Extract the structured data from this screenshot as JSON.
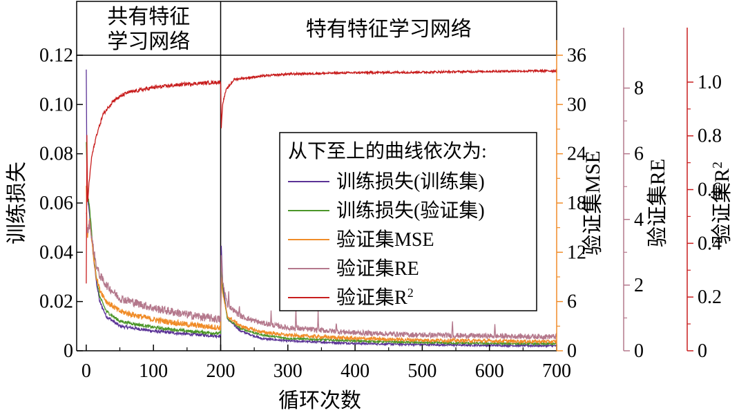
{
  "chart_data": {
    "type": "line",
    "xlabel": "循环次数",
    "x_range": [
      -5,
      700
    ],
    "x_ticks": [
      0,
      100,
      200,
      300,
      400,
      500,
      600,
      700
    ],
    "stage_divider_x": 200,
    "stages": [
      {
        "label_lines": [
          "共有特征",
          "学习网络"
        ],
        "x_range": [
          0,
          200
        ]
      },
      {
        "label_lines": [
          "特有特征学习网络"
        ],
        "x_range": [
          200,
          700
        ]
      }
    ],
    "axes": [
      {
        "id": "loss",
        "side": "left",
        "label": "训练损失",
        "range": [
          0,
          0.12
        ],
        "ticks": [
          "0",
          "0.02",
          "0.04",
          "0.06",
          "0.08",
          "0.10",
          "0.12"
        ],
        "color": "#000000"
      },
      {
        "id": "mse",
        "side": "right",
        "label": "验证集MSE",
        "range": [
          0,
          36
        ],
        "ticks": [
          "0",
          "6",
          "12",
          "18",
          "24",
          "30",
          "36"
        ],
        "color": "#f08c28"
      },
      {
        "id": "re",
        "side": "right",
        "label": "验证集RE",
        "range": [
          0,
          9
        ],
        "ticks": [
          "0",
          "2",
          "4",
          "6",
          "8"
        ],
        "color": "#b4788c"
      },
      {
        "id": "r2",
        "side": "right",
        "label": "验证集R",
        "label_sup": "2",
        "range": [
          0,
          1.1
        ],
        "ticks": [
          "0",
          "0.2",
          "0.4",
          "0.6",
          "0.8",
          "1.0"
        ],
        "color": "#c81e1e"
      }
    ],
    "legend": {
      "title": "从下至上的曲线依次为:",
      "position": "center-right",
      "entries": [
        {
          "label": "训练损失(训练集)",
          "sup": "",
          "color": "#5a3296"
        },
        {
          "label": "训练损失(验证集)",
          "sup": "",
          "color": "#4b9628"
        },
        {
          "label": "验证集MSE",
          "sup": "",
          "color": "#f08c28"
        },
        {
          "label": "验证集RE",
          "sup": "",
          "color": "#b4788c"
        },
        {
          "label": "验证集R",
          "sup": "2",
          "color": "#c81e1e"
        }
      ]
    },
    "series": [
      {
        "name": "训练损失(训练集)",
        "axis": "loss",
        "color": "#5a3296",
        "points": [
          [
            0,
            0.114
          ],
          [
            1,
            0.07
          ],
          [
            2,
            0.062
          ],
          [
            5,
            0.055
          ],
          [
            10,
            0.04
          ],
          [
            15,
            0.028
          ],
          [
            20,
            0.02
          ],
          [
            30,
            0.014
          ],
          [
            50,
            0.01
          ],
          [
            100,
            0.008
          ],
          [
            150,
            0.0068
          ],
          [
            200,
            0.006
          ],
          [
            201,
            0.043
          ],
          [
            203,
            0.028
          ],
          [
            210,
            0.013
          ],
          [
            230,
            0.008
          ],
          [
            260,
            0.005
          ],
          [
            300,
            0.004
          ],
          [
            400,
            0.003
          ],
          [
            500,
            0.0025
          ],
          [
            600,
            0.0022
          ],
          [
            700,
            0.002
          ]
        ]
      },
      {
        "name": "训练损失(验证集)",
        "axis": "loss",
        "color": "#4b9628",
        "points": [
          [
            0,
            0.085
          ],
          [
            1,
            0.072
          ],
          [
            2,
            0.064
          ],
          [
            5,
            0.058
          ],
          [
            10,
            0.042
          ],
          [
            15,
            0.03
          ],
          [
            20,
            0.022
          ],
          [
            30,
            0.016
          ],
          [
            50,
            0.012
          ],
          [
            100,
            0.0095
          ],
          [
            150,
            0.008
          ],
          [
            200,
            0.007
          ],
          [
            201,
            0.035
          ],
          [
            203,
            0.025
          ],
          [
            210,
            0.013
          ],
          [
            230,
            0.009
          ],
          [
            260,
            0.0065
          ],
          [
            300,
            0.005
          ],
          [
            400,
            0.004
          ],
          [
            500,
            0.0033
          ],
          [
            600,
            0.003
          ],
          [
            700,
            0.0028
          ]
        ]
      },
      {
        "name": "验证集MSE",
        "axis": "mse",
        "color": "#f08c28",
        "points": [
          [
            0,
            20
          ],
          [
            1,
            15
          ],
          [
            2,
            14
          ],
          [
            5,
            16
          ],
          [
            10,
            12
          ],
          [
            15,
            9
          ],
          [
            20,
            7.5
          ],
          [
            30,
            6
          ],
          [
            50,
            4.8
          ],
          [
            100,
            3.8
          ],
          [
            150,
            3.2
          ],
          [
            200,
            2.8
          ],
          [
            201,
            9
          ],
          [
            203,
            7
          ],
          [
            210,
            4.2
          ],
          [
            230,
            3
          ],
          [
            260,
            2.3
          ],
          [
            300,
            1.9
          ],
          [
            400,
            1.5
          ],
          [
            500,
            1.3
          ],
          [
            600,
            1.2
          ],
          [
            700,
            1.1
          ]
        ]
      },
      {
        "name": "验证集RE",
        "axis": "re",
        "color": "#b4788c",
        "points": [
          [
            0,
            4.3
          ],
          [
            1,
            3.8
          ],
          [
            2,
            3.6
          ],
          [
            5,
            3.9
          ],
          [
            10,
            3.2
          ],
          [
            15,
            2.6
          ],
          [
            20,
            2.3
          ],
          [
            30,
            2
          ],
          [
            50,
            1.6
          ],
          [
            100,
            1.3
          ],
          [
            150,
            1.1
          ],
          [
            200,
            0.95
          ],
          [
            201,
            2.9
          ],
          [
            203,
            2.1
          ],
          [
            210,
            1.4
          ],
          [
            230,
            1.05
          ],
          [
            260,
            0.85
          ],
          [
            300,
            0.7
          ],
          [
            400,
            0.55
          ],
          [
            500,
            0.48
          ],
          [
            600,
            0.45
          ],
          [
            700,
            0.43
          ]
        ]
      },
      {
        "name": "验证集R²",
        "axis": "r2",
        "color": "#c81e1e",
        "points": [
          [
            0,
            0.25
          ],
          [
            1,
            0.8
          ],
          [
            2,
            0.55
          ],
          [
            4,
            0.62
          ],
          [
            8,
            0.72
          ],
          [
            15,
            0.8
          ],
          [
            25,
            0.88
          ],
          [
            40,
            0.93
          ],
          [
            60,
            0.96
          ],
          [
            100,
            0.98
          ],
          [
            150,
            0.993
          ],
          [
            200,
            1.0
          ],
          [
            201,
            0.83
          ],
          [
            203,
            0.92
          ],
          [
            208,
            0.97
          ],
          [
            220,
            1.01
          ],
          [
            260,
            1.022
          ],
          [
            300,
            1.03
          ],
          [
            400,
            1.035
          ],
          [
            500,
            1.037
          ],
          [
            600,
            1.04
          ],
          [
            700,
            1.042
          ]
        ]
      }
    ]
  }
}
